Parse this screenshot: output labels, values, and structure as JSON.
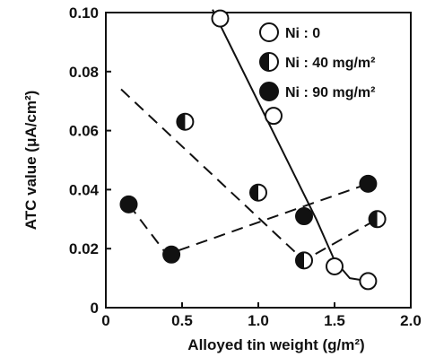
{
  "chart_data": {
    "type": "scatter",
    "xlabel": "Alloyed tin weight (g/m²)",
    "ylabel": "ATC value (μA/cm²)",
    "xlim": [
      0,
      2.0
    ],
    "ylim": [
      0,
      0.1
    ],
    "x_ticks": [
      "0",
      "0.5",
      "1.0",
      "1.5",
      "2.0"
    ],
    "y_ticks": [
      "0",
      "0.02",
      "0.04",
      "0.06",
      "0.08",
      "0.10"
    ],
    "legend_position": "top-right",
    "series": [
      {
        "name": "Ni : 0",
        "marker": "open-circle",
        "line_style": "solid",
        "points": [
          [
            0.75,
            0.098
          ],
          [
            1.1,
            0.065
          ],
          [
            1.5,
            0.014
          ],
          [
            1.72,
            0.009
          ]
        ],
        "fit_line": [
          [
            0.7,
            0.101
          ],
          [
            1.38,
            0.03
          ],
          [
            1.5,
            0.016
          ],
          [
            1.6,
            0.01
          ],
          [
            1.72,
            0.009
          ]
        ]
      },
      {
        "name": "Ni : 40 mg/m²",
        "marker": "half-filled-circle",
        "line_style": "dashed",
        "points": [
          [
            0.52,
            0.063
          ],
          [
            1.0,
            0.039
          ],
          [
            1.3,
            0.016
          ],
          [
            1.78,
            0.03
          ]
        ],
        "fit_line": [
          [
            0.1,
            0.074
          ],
          [
            1.3,
            0.016
          ],
          [
            1.78,
            0.03
          ]
        ]
      },
      {
        "name": "Ni : 90 mg/m²",
        "marker": "filled-circle",
        "line_style": "dashed",
        "points": [
          [
            0.15,
            0.035
          ],
          [
            0.43,
            0.018
          ],
          [
            1.3,
            0.031
          ],
          [
            1.72,
            0.042
          ]
        ],
        "fit_line": [
          [
            0.15,
            0.035
          ],
          [
            0.4,
            0.018
          ],
          [
            1.72,
            0.042
          ]
        ]
      }
    ]
  }
}
